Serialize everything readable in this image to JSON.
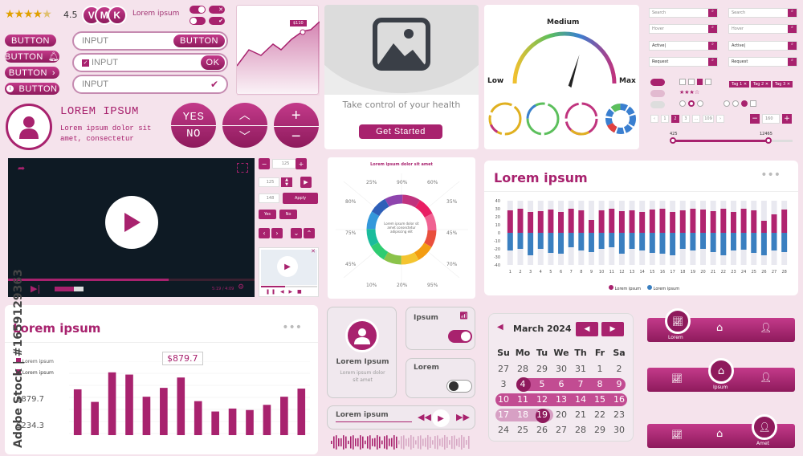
{
  "rating": {
    "value": "4.5",
    "stars": 4.5
  },
  "avatars": [
    "V",
    "M",
    "K"
  ],
  "avatars_label": "Lorem ipsum",
  "buttons": {
    "b1": "BUTTON",
    "b2": "BUTTON",
    "b3": "BUTTON",
    "b4": "BUTTON"
  },
  "inputs": {
    "i1": "INPUT",
    "i1_btn": "BUTTON",
    "i2": "INPUT",
    "i2_btn": "OK",
    "i3": "INPUT"
  },
  "sparkline": {
    "badge": "$110"
  },
  "profile": {
    "title": "LOREM IPSUM",
    "text1": "Lorem ipsum dolor sit",
    "text2": "amet, consectetur"
  },
  "yesno": {
    "yes": "YES",
    "no": "NO"
  },
  "image_card": {
    "caption": "Take control of your health",
    "button": "Get Started"
  },
  "gauge": {
    "low": "Low",
    "medium": "Medium",
    "max": "Max"
  },
  "gauge_needle_value": 0.7,
  "form_grid": {
    "search": "Search",
    "hover": "Hover",
    "active": "Active|",
    "request": "Request"
  },
  "tags": [
    "Tag 1",
    "Tag 2",
    "Tag 3"
  ],
  "pagination": {
    "pages": [
      "1",
      "2",
      "3",
      "...",
      "109"
    ],
    "stepper": "160",
    "range_min": "425",
    "range_max": "12465"
  },
  "video": {
    "time": "5:19 / 4:09"
  },
  "stepper_controls": {
    "a": "125",
    "b": "125",
    "c": "148",
    "apply": "Apply",
    "yes": "Yes",
    "no": "No"
  },
  "donut": {
    "title": "Lorem ipsum dolor sit amet",
    "center": "Lorem ipsum dolor sit amet consectetur adipiscing elit",
    "percents": [
      "25%",
      "90%",
      "60%",
      "35%",
      "45%",
      "70%",
      "95%",
      "20%",
      "10%",
      "45%",
      "75%",
      "80%"
    ]
  },
  "bar_chart_top": {
    "title": "Lorem ipsum",
    "legend1": "Lorem ipsum",
    "legend2": "Lorem ipsum",
    "ylabels": [
      "40",
      "30",
      "20",
      "10",
      "0",
      "-10",
      "-20",
      "-30",
      "-40"
    ]
  },
  "chart_data": [
    {
      "type": "bar",
      "title": "Lorem ipsum",
      "ylim": [
        -40,
        40
      ],
      "categories": [
        "1",
        "2",
        "3",
        "4",
        "5",
        "6",
        "7",
        "8",
        "9",
        "10",
        "11",
        "12",
        "13",
        "14",
        "15",
        "16",
        "17",
        "18",
        "19",
        "20",
        "21",
        "22",
        "23",
        "24",
        "25",
        "26",
        "27",
        "28"
      ],
      "series": [
        {
          "name": "Lorem ipsum",
          "values": [
            28,
            30,
            26,
            27,
            29,
            26,
            30,
            28,
            16,
            28,
            30,
            27,
            28,
            26,
            29,
            30,
            26,
            28,
            30,
            29,
            27,
            30,
            26,
            30,
            28,
            15,
            23,
            29
          ]
        },
        {
          "name": "Lorem ipsum",
          "values": [
            -22,
            -20,
            -28,
            -20,
            -25,
            -26,
            -18,
            -22,
            -24,
            -20,
            -18,
            -26,
            -20,
            -22,
            -25,
            -26,
            -28,
            -20,
            -22,
            -20,
            -24,
            -28,
            -22,
            -21,
            -25,
            -28,
            -22,
            -24
          ]
        }
      ]
    },
    {
      "type": "bar",
      "title": "Lorem ipsum",
      "categories": [
        "1",
        "2",
        "3",
        "4",
        "5",
        "6",
        "7",
        "8",
        "9",
        "10",
        "11",
        "12",
        "13",
        "14"
      ],
      "series": [
        {
          "name": "",
          "values": [
            62,
            45,
            85,
            82,
            52,
            64,
            78,
            46,
            32,
            36,
            34,
            41,
            52,
            63
          ]
        }
      ]
    }
  ],
  "bar_chart_bottom": {
    "title": "Lorem ipsum",
    "legend1": "Lorem ipsum",
    "legend2": "Lorem ipsum",
    "badge": "$879.7",
    "val1": "$879.7",
    "val2": "$234.3"
  },
  "profile_card": {
    "name": "Lorem Ipsum",
    "sub1": "Lorem ipsum dolor",
    "sub2": "sit amet"
  },
  "toggles": {
    "t1": "Ipsum",
    "t2": "Lorem"
  },
  "player": {
    "label": "Lorem ipsum"
  },
  "calendar": {
    "month": "March 2024",
    "days": [
      "Su",
      "Mo",
      "Tu",
      "We",
      "Th",
      "Fr",
      "Sa"
    ],
    "rows": [
      [
        "27",
        "28",
        "29",
        "30",
        "31",
        "1",
        "2"
      ],
      [
        "3",
        "4",
        "5",
        "6",
        "7",
        "8",
        "9"
      ],
      [
        "10",
        "11",
        "12",
        "13",
        "14",
        "15",
        "16"
      ],
      [
        "17",
        "18",
        "19",
        "20",
        "21",
        "22",
        "23"
      ],
      [
        "24",
        "25",
        "26",
        "27",
        "28",
        "29",
        "30"
      ]
    ]
  },
  "tabbars": {
    "a": "Lorem",
    "b": "Ipsum",
    "c": "Amet"
  },
  "watermark": {
    "vertical": "Adobe Stock | #1659129363"
  }
}
